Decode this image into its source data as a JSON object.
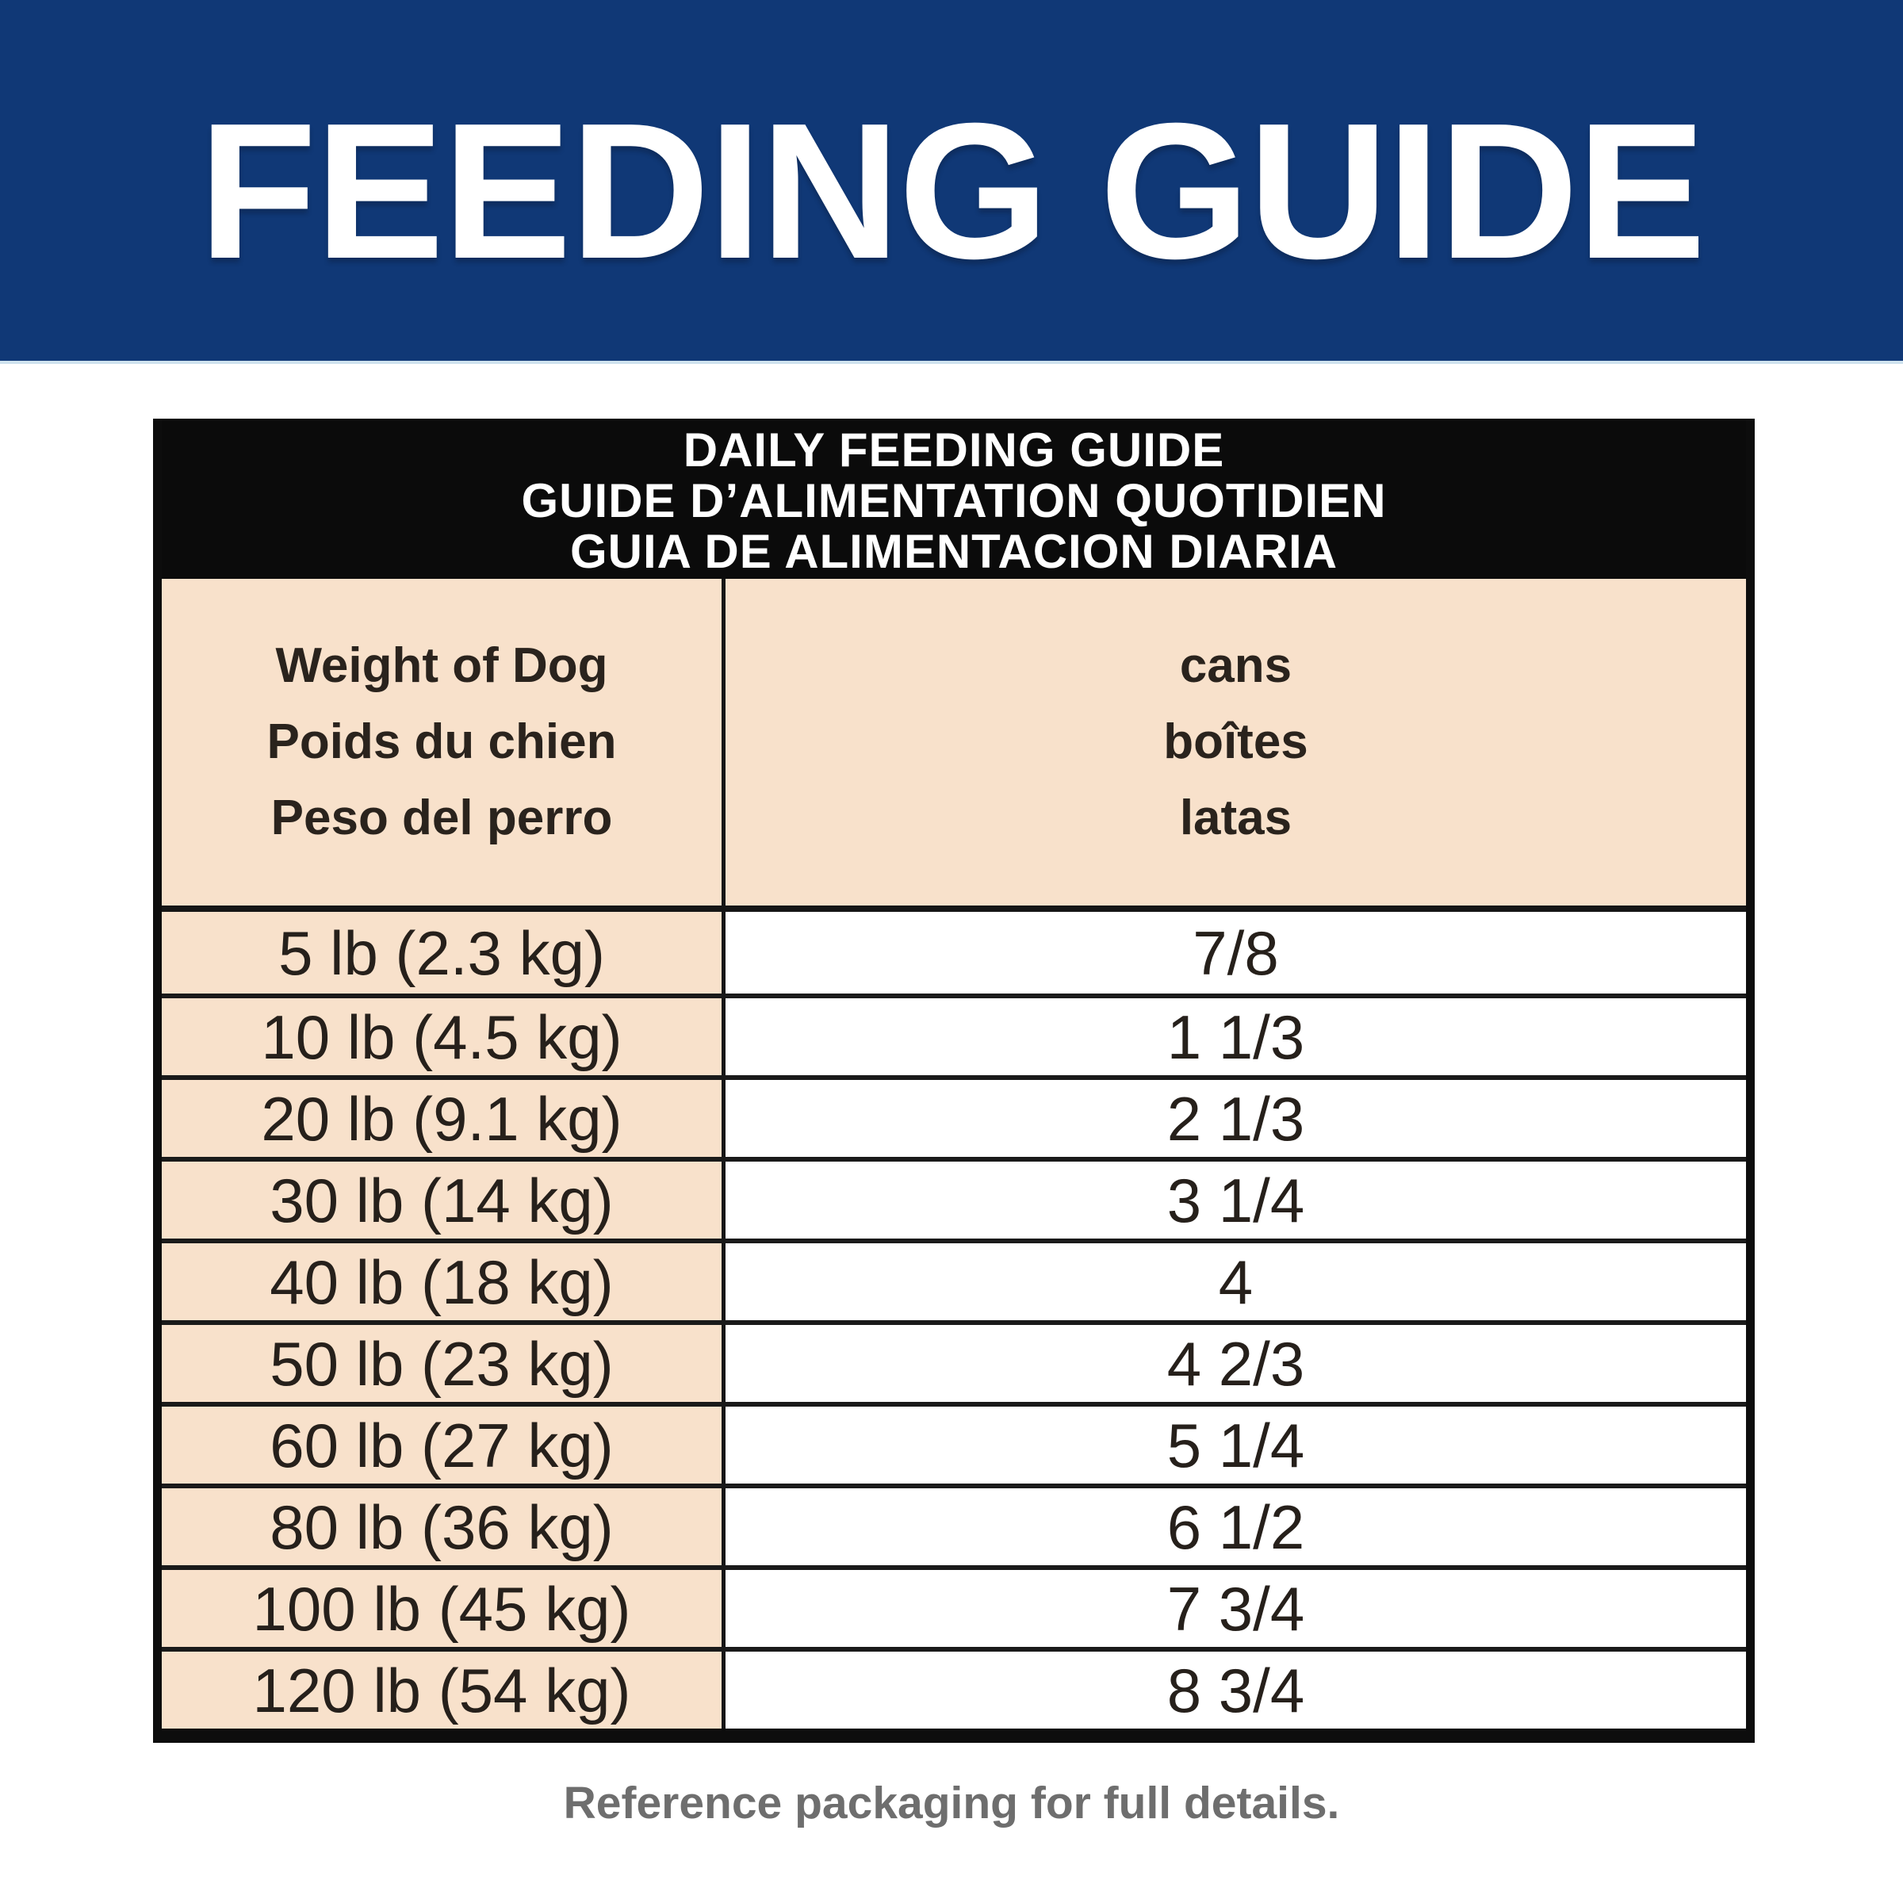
{
  "banner": {
    "title": "FEEDING GUIDE",
    "bg_color": "#103876",
    "text_color": "#ffffff"
  },
  "table": {
    "title_lines": [
      "DAILY FEEDING GUIDE",
      "GUIDE D’ALIMENTATION QUOTIDIEN",
      "GUIA DE ALIMENTACION DIARIA"
    ],
    "weight_header_lines": [
      "Weight of Dog",
      "Poids du chien",
      "Peso del perro"
    ],
    "cans_header_lines": [
      "cans",
      "boîtes",
      "latas"
    ],
    "rows": [
      {
        "weight": "5 lb (2.3 kg)",
        "cans": "7/8"
      },
      {
        "weight": "10 lb (4.5 kg)",
        "cans": "1 1/3"
      },
      {
        "weight": "20 lb (9.1 kg)",
        "cans": "2 1/3"
      },
      {
        "weight": "30 lb (14 kg)",
        "cans": "3 1/4"
      },
      {
        "weight": "40 lb (18 kg)",
        "cans": "4"
      },
      {
        "weight": "50 lb (23 kg)",
        "cans": "4 2/3"
      },
      {
        "weight": "60 lb (27 kg)",
        "cans": "5 1/4"
      },
      {
        "weight": "80 lb (36 kg)",
        "cans": "6 1/2"
      },
      {
        "weight": "100 lb (45 kg)",
        "cans": "7 3/4"
      },
      {
        "weight": "120 lb (54 kg)",
        "cans": "8 3/4"
      }
    ],
    "colors": {
      "title_band_bg": "#0b0b0b",
      "title_band_text": "#ffffff",
      "cream_cell_bg": "#f8e1cb",
      "row_text": "#26201b",
      "grid_line": "#1a1a1a"
    }
  },
  "footer": {
    "note": "Reference packaging for full details.",
    "color": "#6e6e6e"
  }
}
